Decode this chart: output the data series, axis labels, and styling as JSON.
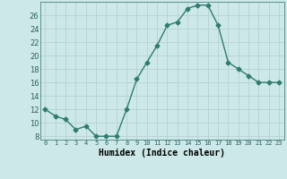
{
  "x": [
    0,
    1,
    2,
    3,
    4,
    5,
    6,
    7,
    8,
    9,
    10,
    11,
    12,
    13,
    14,
    15,
    16,
    17,
    18,
    19,
    20,
    21,
    22,
    23
  ],
  "y": [
    12,
    11,
    10.5,
    9,
    9.5,
    8,
    8,
    8,
    12,
    16.5,
    19,
    21.5,
    24.5,
    25,
    27,
    27.5,
    27.5,
    24.5,
    19,
    18,
    17,
    16,
    16,
    16
  ],
  "line_color": "#2e7d6e",
  "marker": "D",
  "marker_size": 2.5,
  "bg_color": "#cde8e8",
  "grid_color": "#b8d4d4",
  "xlabel": "Humidex (Indice chaleur)",
  "xlabel_fontsize": 7,
  "ylabel_ticks": [
    8,
    10,
    12,
    14,
    16,
    18,
    20,
    22,
    24,
    26
  ],
  "xlim": [
    -0.5,
    23.5
  ],
  "ylim": [
    7.5,
    28
  ],
  "xtick_labels": [
    "0",
    "1",
    "2",
    "3",
    "4",
    "5",
    "6",
    "7",
    "8",
    "9",
    "10",
    "11",
    "12",
    "13",
    "14",
    "15",
    "16",
    "17",
    "18",
    "19",
    "20",
    "21",
    "22",
    "23"
  ]
}
